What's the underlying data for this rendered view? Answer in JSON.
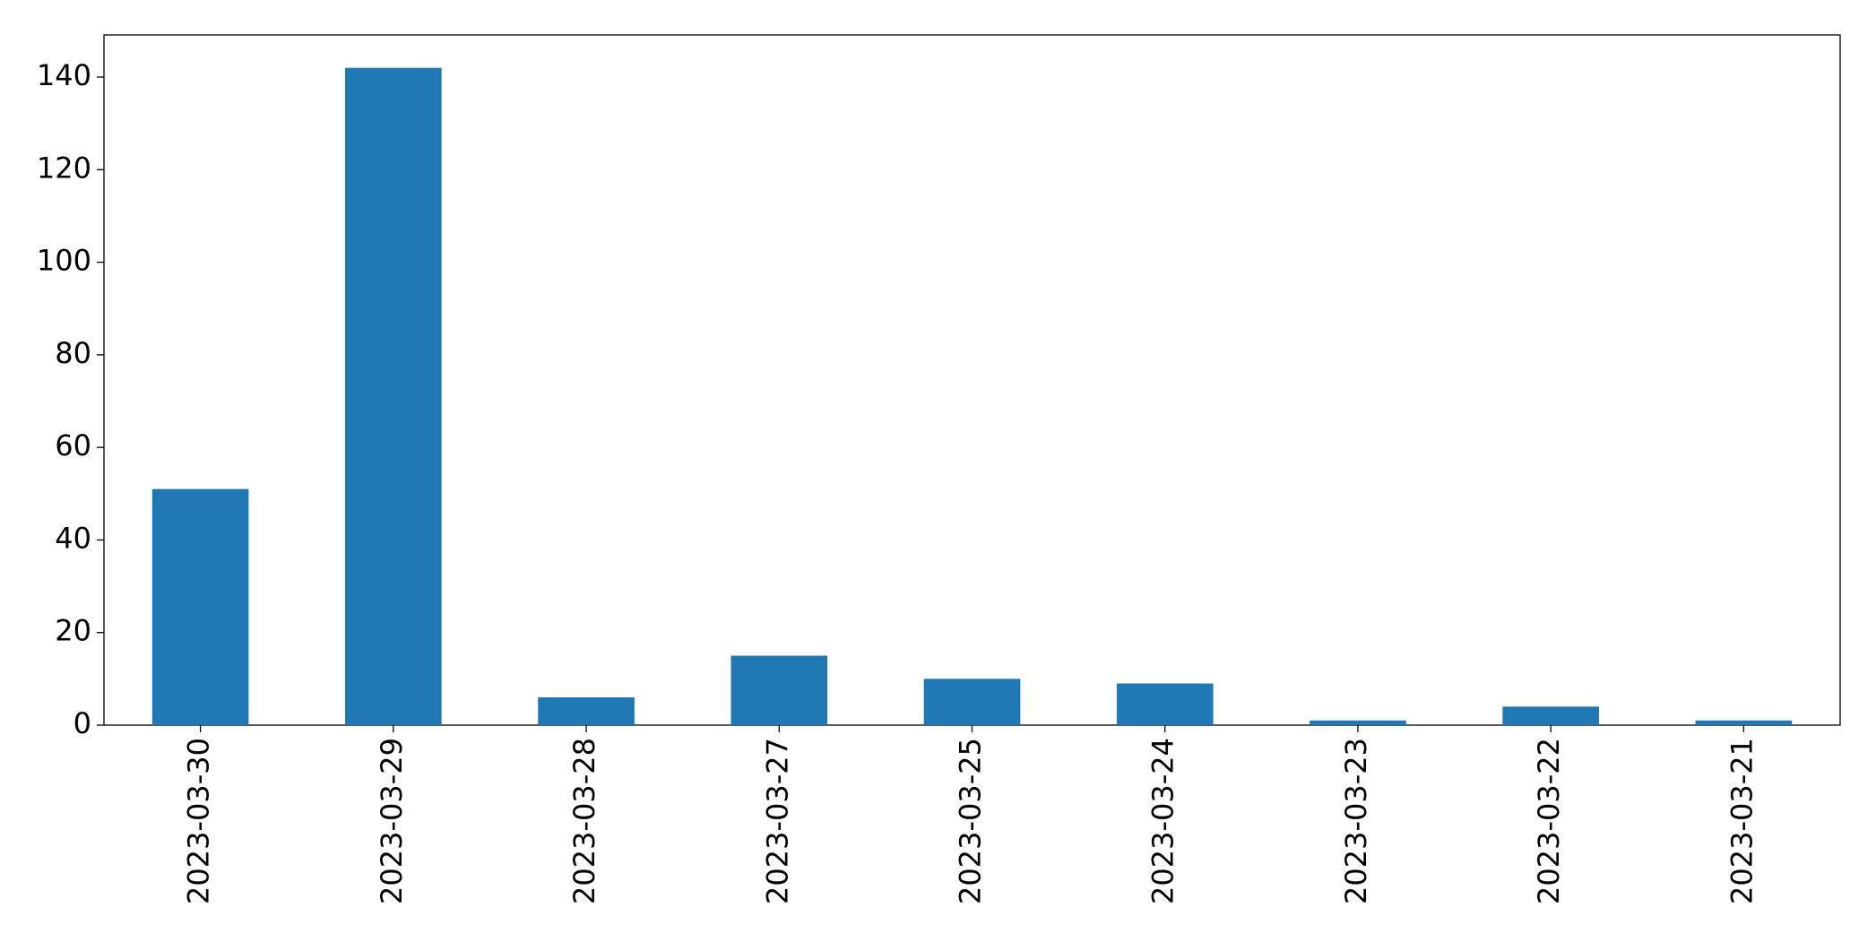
{
  "chart_data": {
    "type": "bar",
    "categories": [
      "2023-03-30",
      "2023-03-29",
      "2023-03-28",
      "2023-03-27",
      "2023-03-25",
      "2023-03-24",
      "2023-03-23",
      "2023-03-22",
      "2023-03-21"
    ],
    "values": [
      51,
      142,
      6,
      15,
      10,
      9,
      1,
      4,
      1
    ],
    "color": "#1f77b4",
    "ylim": [
      0,
      149.1
    ],
    "yticks": [
      0,
      20,
      40,
      60,
      80,
      100,
      120,
      140
    ],
    "grid": false
  }
}
